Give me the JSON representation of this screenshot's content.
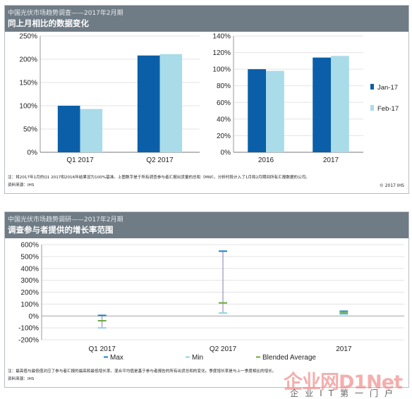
{
  "panel1": {
    "kicker": "中国光伏市场趋势调查——2017年2月期",
    "title": "同上月相比的数据变化",
    "note": "注：将2017年1月的Q1 2017和2016年结果设为100%基准。上图数字是于所有调查参与者汇报出货量的总和（MW）。分析时段计入了1月和2月期间所有汇报数据的公司。",
    "source": "资料来源：IHS",
    "copyright": "© 2017 IHS"
  },
  "panel2": {
    "kicker": "中国光伏市场趋势调研——2017年2月期",
    "title": "调查参与者提供的增长率范围",
    "note": "注：最高值与最低值对应了参与者汇报的最高和最低增长率。混合平均值是基于参与者报告的所有出货总和的变化。季度增长率是与上一季度相比的增长。",
    "source": "资料来源：IHS"
  },
  "watermark": {
    "main": "企业网D1Net",
    "sub": "企业IT第一门户"
  },
  "chart_data": [
    {
      "type": "bar",
      "categories": [
        "Q1 2017",
        "Q2 2017"
      ],
      "series": [
        {
          "name": "Jan-17",
          "values": [
            100,
            208
          ]
        },
        {
          "name": "Feb-17",
          "values": [
            93,
            211
          ]
        }
      ],
      "ylim": [
        0,
        250
      ],
      "yticks": [
        "0%",
        "50%",
        "100%",
        "150%",
        "200%",
        "250%"
      ],
      "grid": true,
      "colors": [
        "#0a5fa8",
        "#a9dbe9"
      ]
    },
    {
      "type": "bar",
      "categories": [
        "2016",
        "2017"
      ],
      "series": [
        {
          "name": "Jan-17",
          "values": [
            100,
            114
          ]
        },
        {
          "name": "Feb-17",
          "values": [
            98,
            116
          ]
        }
      ],
      "ylim": [
        0,
        140
      ],
      "yticks": [
        "0%",
        "20%",
        "40%",
        "60%",
        "80%",
        "100%",
        "120%",
        "140%"
      ],
      "grid": true,
      "legend": "right",
      "colors": [
        "#0a5fa8",
        "#a9dbe9"
      ]
    },
    {
      "type": "scatter",
      "categories": [
        "Q1 2017",
        "Q2 2017",
        "2017"
      ],
      "series": [
        {
          "name": "Max",
          "values": [
            5,
            545,
            40
          ]
        },
        {
          "name": "Min",
          "values": [
            -100,
            25,
            15
          ]
        },
        {
          "name": "Blended Average",
          "values": [
            -40,
            110,
            25
          ]
        }
      ],
      "ylim": [
        -200,
        600
      ],
      "yticks": [
        "-200%",
        "-100%",
        "0%",
        "100%",
        "200%",
        "300%",
        "400%",
        "500%",
        "600%"
      ],
      "grid": true,
      "legend": "bottom",
      "colors": {
        "Max": "#1f7fc0",
        "Min": "#8fd3e6",
        "Blended Average": "#6aaa3f",
        "range": "#8a7fa8"
      }
    }
  ]
}
